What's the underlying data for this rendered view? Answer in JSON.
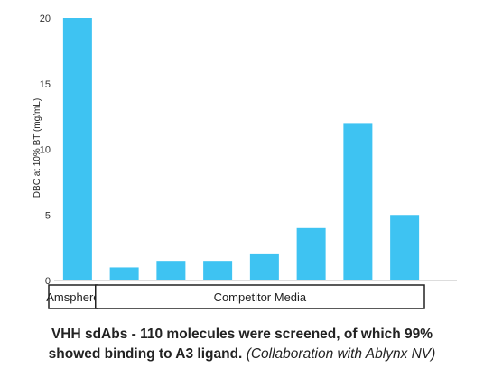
{
  "chart_data": {
    "type": "bar",
    "ylabel": "DBC at 10% BT (mg/mL)",
    "ylim": [
      0,
      20
    ],
    "yticks": [
      0,
      5,
      10,
      15,
      20
    ],
    "grid": false,
    "values": [
      20,
      1,
      1.5,
      1.5,
      2,
      4,
      12,
      5
    ],
    "bar_color": "#3ec3f2",
    "groups": [
      {
        "label": "Amsphere",
        "start": 0,
        "end": 0
      },
      {
        "label": "Competitor Media",
        "start": 1,
        "end": 7
      }
    ]
  },
  "caption": {
    "line1": "VHH sdAbs - 110 molecules were screened, of which 99%",
    "line2_bold": "showed binding to A3 ligand.",
    "line2_italic": "(Collaboration with Ablynx NV)"
  }
}
